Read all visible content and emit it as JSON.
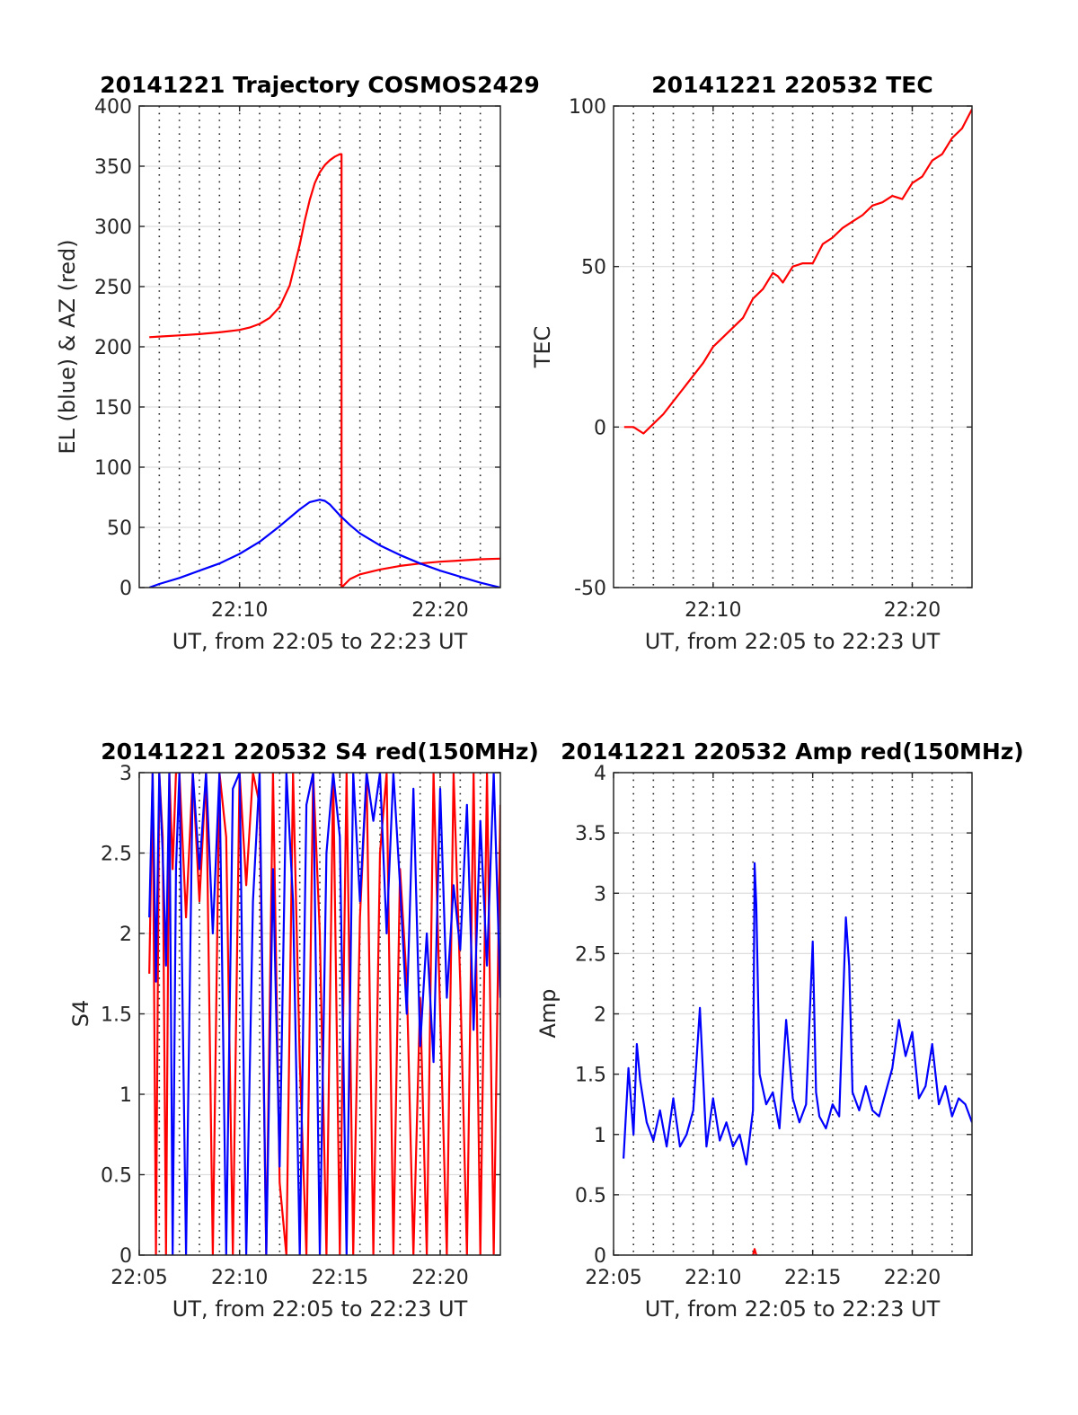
{
  "figure": {
    "colors": {
      "red": "#ff0000",
      "blue": "#0000ff",
      "axis": "#262626",
      "grid": "#dedede"
    }
  },
  "chart_data": [
    {
      "id": "trajectory",
      "type": "line",
      "title": "20141221 Trajectory COSMOS2429",
      "xlabel": "UT, from 22:05 to 22:23 UT",
      "ylabel": "EL (blue) & AZ (red)",
      "xlim": [
        "22:05",
        "22:23"
      ],
      "ylim": [
        0,
        400
      ],
      "yticks": [
        0,
        50,
        100,
        150,
        200,
        250,
        300,
        350,
        400
      ],
      "xticks": [
        {
          "t": "22:10",
          "label": "22:10"
        },
        {
          "t": "22:20",
          "label": "22:20"
        }
      ],
      "vgrid_minutes": [
        "22:06",
        "22:07",
        "22:08",
        "22:09",
        "22:10",
        "22:11",
        "22:12",
        "22:13",
        "22:14",
        "22:15",
        "22:16",
        "22:17",
        "22:18",
        "22:19",
        "22:20",
        "22:21",
        "22:22"
      ],
      "grid": true,
      "series": [
        {
          "color": "red",
          "x": [
            "22:05:30",
            "22:06:00",
            "22:07:00",
            "22:08:00",
            "22:09:00",
            "22:10:00",
            "22:10:30",
            "22:11:00",
            "22:11:30",
            "22:12:00",
            "22:12:30",
            "22:13:00",
            "22:13:15",
            "22:13:30",
            "22:13:45",
            "22:14:00",
            "22:14:15",
            "22:14:30",
            "22:14:45",
            "22:15:00",
            "22:15:05",
            "22:15:05",
            "22:15:30",
            "22:16:00",
            "22:17:00",
            "22:18:00",
            "22:19:00",
            "22:20:00",
            "22:21:00",
            "22:22:00",
            "22:23:00"
          ],
          "y": [
            208,
            208.5,
            209.5,
            210.5,
            212,
            214,
            216,
            219,
            224,
            233,
            251,
            285,
            305,
            322,
            336,
            345,
            351,
            355,
            358,
            360,
            360,
            0,
            7,
            11,
            15,
            18,
            20,
            21.5,
            22.5,
            23.5,
            24
          ]
        },
        {
          "color": "blue",
          "x": [
            "22:05:30",
            "22:06:00",
            "22:07:00",
            "22:08:00",
            "22:09:00",
            "22:10:00",
            "22:11:00",
            "22:12:00",
            "22:13:00",
            "22:13:30",
            "22:14:00",
            "22:14:15",
            "22:14:30",
            "22:15:00",
            "22:15:30",
            "22:16:00",
            "22:17:00",
            "22:18:00",
            "22:19:00",
            "22:20:00",
            "22:21:00",
            "22:22:00",
            "22:23:00"
          ],
          "y": [
            0,
            3,
            8,
            14,
            20,
            28,
            38,
            51,
            65,
            71,
            73,
            72,
            69,
            60,
            52,
            45,
            35,
            27,
            20,
            14,
            9,
            4,
            0
          ]
        }
      ]
    },
    {
      "id": "tec",
      "type": "line",
      "title": "20141221 220532 TEC",
      "xlabel": "UT, from 22:05 to 22:23 UT",
      "ylabel": "TEC",
      "xlim": [
        "22:05",
        "22:23"
      ],
      "ylim": [
        -50,
        100
      ],
      "yticks": [
        -50,
        0,
        50,
        100
      ],
      "xticks": [
        {
          "t": "22:10",
          "label": "22:10"
        },
        {
          "t": "22:20",
          "label": "22:20"
        }
      ],
      "vgrid_minutes": [
        "22:06",
        "22:07",
        "22:08",
        "22:09",
        "22:10",
        "22:11",
        "22:12",
        "22:13",
        "22:14",
        "22:15",
        "22:16",
        "22:17",
        "22:18",
        "22:19",
        "22:20",
        "22:21",
        "22:22"
      ],
      "grid": true,
      "series": [
        {
          "color": "red",
          "x": [
            "22:05:32",
            "22:06:00",
            "22:06:30",
            "22:07:00",
            "22:07:30",
            "22:08:00",
            "22:08:30",
            "22:09:00",
            "22:09:30",
            "22:10:00",
            "22:10:30",
            "22:11:00",
            "22:11:30",
            "22:12:00",
            "22:12:30",
            "22:13:00",
            "22:13:15",
            "22:13:30",
            "22:14:00",
            "22:14:30",
            "22:15:00",
            "22:15:30",
            "22:16:00",
            "22:16:30",
            "22:17:00",
            "22:17:30",
            "22:18:00",
            "22:18:30",
            "22:19:00",
            "22:19:30",
            "22:20:00",
            "22:20:30",
            "22:21:00",
            "22:21:30",
            "22:22:00",
            "22:22:30",
            "22:23:00"
          ],
          "y": [
            0,
            0,
            -2,
            1,
            4,
            8,
            12,
            16,
            20,
            25,
            28,
            31,
            34,
            40,
            43,
            48,
            47,
            45,
            50,
            51,
            51,
            57,
            59,
            62,
            64,
            66,
            69,
            70,
            72,
            71,
            76,
            78,
            83,
            85,
            90,
            93,
            99
          ]
        }
      ]
    },
    {
      "id": "s4",
      "type": "line",
      "title": "20141221 220532 S4 red(150MHz)",
      "xlabel": "UT, from 22:05 to 22:23 UT",
      "ylabel": "S4",
      "xlim": [
        "22:05",
        "22:23"
      ],
      "ylim": [
        0,
        3
      ],
      "yticks": [
        0,
        0.5,
        1,
        1.5,
        2,
        2.5,
        3
      ],
      "xticks": [
        {
          "t": "22:05",
          "label": "22:05"
        },
        {
          "t": "22:10",
          "label": "22:10"
        },
        {
          "t": "22:15",
          "label": "22:15"
        },
        {
          "t": "22:20",
          "label": "22:20"
        }
      ],
      "vgrid_minutes": [
        "22:06",
        "22:07",
        "22:08",
        "22:09",
        "22:10",
        "22:11",
        "22:12",
        "22:13",
        "22:14",
        "22:15",
        "22:16",
        "22:17",
        "22:18",
        "22:19",
        "22:20",
        "22:21",
        "22:22"
      ],
      "grid": true,
      "series": [
        {
          "color": "red",
          "x": [
            "22:05:30",
            "22:05:40",
            "22:05:50",
            "22:06:00",
            "22:06:10",
            "22:06:20",
            "22:06:30",
            "22:06:40",
            "22:06:50",
            "22:07:00",
            "22:07:20",
            "22:07:40",
            "22:08:00",
            "22:08:20",
            "22:08:40",
            "22:09:00",
            "22:09:20",
            "22:09:40",
            "22:10:00",
            "22:10:20",
            "22:10:40",
            "22:11:00",
            "22:11:20",
            "22:11:40",
            "22:12:00",
            "22:12:20",
            "22:12:40",
            "22:13:00",
            "22:13:20",
            "22:13:40",
            "22:14:00",
            "22:14:20",
            "22:14:40",
            "22:15:00",
            "22:15:20",
            "22:15:40",
            "22:16:00",
            "22:16:20",
            "22:16:40",
            "22:17:00",
            "22:17:20",
            "22:17:40",
            "22:18:00",
            "22:18:20",
            "22:18:40",
            "22:19:00",
            "22:19:20",
            "22:19:40",
            "22:20:00",
            "22:20:20",
            "22:20:40",
            "22:21:00",
            "22:21:20",
            "22:21:40",
            "22:22:00",
            "22:22:20",
            "22:22:40",
            "22:23:00"
          ],
          "y": [
            1.75,
            3,
            0,
            3,
            2.6,
            0,
            3,
            2.4,
            3,
            3,
            2.1,
            3,
            2.2,
            3,
            0,
            3,
            2.6,
            0,
            3,
            2.3,
            3,
            2.8,
            0,
            3,
            0.45,
            0,
            3,
            1.2,
            0,
            3,
            2.0,
            0,
            3,
            0,
            3,
            0,
            2.1,
            3,
            0,
            2.5,
            3,
            0,
            2.4,
            1.7,
            0,
            1.6,
            0,
            3,
            1.5,
            0,
            3,
            1.7,
            0,
            3,
            0,
            3,
            0,
            2.8
          ]
        },
        {
          "color": "blue",
          "x": [
            "22:05:30",
            "22:05:40",
            "22:05:50",
            "22:06:00",
            "22:06:10",
            "22:06:20",
            "22:06:30",
            "22:06:40",
            "22:06:50",
            "22:07:00",
            "22:07:20",
            "22:07:40",
            "22:08:00",
            "22:08:20",
            "22:08:40",
            "22:09:00",
            "22:09:20",
            "22:09:40",
            "22:10:00",
            "22:10:20",
            "22:10:40",
            "22:11:00",
            "22:11:20",
            "22:11:40",
            "22:12:00",
            "22:12:20",
            "22:12:40",
            "22:13:00",
            "22:13:20",
            "22:13:40",
            "22:14:00",
            "22:14:20",
            "22:14:40",
            "22:15:00",
            "22:15:20",
            "22:15:40",
            "22:16:00",
            "22:16:20",
            "22:16:40",
            "22:17:00",
            "22:17:20",
            "22:17:40",
            "22:18:00",
            "22:18:20",
            "22:18:40",
            "22:19:00",
            "22:19:20",
            "22:19:40",
            "22:20:00",
            "22:20:20",
            "22:20:40",
            "22:21:00",
            "22:21:20",
            "22:21:40",
            "22:22:00",
            "22:22:20",
            "22:22:40",
            "22:23:00"
          ],
          "y": [
            2.1,
            3,
            1.7,
            3,
            2.5,
            1.8,
            3,
            0,
            2.4,
            3,
            0,
            3,
            2.4,
            3,
            2.0,
            3,
            0,
            2.9,
            3,
            0,
            2.2,
            3,
            0,
            2.4,
            0.55,
            3,
            2.2,
            0,
            2.8,
            3,
            0,
            2.5,
            3,
            2.6,
            0,
            3,
            2.2,
            3,
            2.7,
            3,
            2.0,
            3,
            2.3,
            1.5,
            2.9,
            1.3,
            2.0,
            1.2,
            2.9,
            1.6,
            2.3,
            1.9,
            2.8,
            1.4,
            2.7,
            1.8,
            3,
            1.6
          ]
        }
      ]
    },
    {
      "id": "amp",
      "type": "line",
      "title": "20141221 220532 Amp red(150MHz)",
      "xlabel": "UT, from 22:05 to 22:23 UT",
      "ylabel": "Amp",
      "xlim": [
        "22:05",
        "22:23"
      ],
      "ylim": [
        0,
        4
      ],
      "yticks": [
        0,
        0.5,
        1,
        1.5,
        2,
        2.5,
        3,
        3.5,
        4
      ],
      "xticks": [
        {
          "t": "22:05",
          "label": "22:05"
        },
        {
          "t": "22:10",
          "label": "22:10"
        },
        {
          "t": "22:15",
          "label": "22:15"
        },
        {
          "t": "22:20",
          "label": "22:20"
        }
      ],
      "vgrid_minutes": [
        "22:06",
        "22:07",
        "22:08",
        "22:09",
        "22:10",
        "22:11",
        "22:12",
        "22:13",
        "22:14",
        "22:15",
        "22:16",
        "22:17",
        "22:18",
        "22:19",
        "22:20",
        "22:21",
        "22:22"
      ],
      "grid": true,
      "series": [
        {
          "color": "blue",
          "x": [
            "22:05:30",
            "22:05:45",
            "22:06:00",
            "22:06:10",
            "22:06:20",
            "22:06:40",
            "22:07:00",
            "22:07:20",
            "22:07:40",
            "22:08:00",
            "22:08:20",
            "22:08:40",
            "22:09:00",
            "22:09:20",
            "22:09:40",
            "22:10:00",
            "22:10:20",
            "22:10:40",
            "22:11:00",
            "22:11:20",
            "22:11:40",
            "22:12:00",
            "22:12:05",
            "22:12:10",
            "22:12:20",
            "22:12:40",
            "22:13:00",
            "22:13:20",
            "22:13:40",
            "22:14:00",
            "22:14:20",
            "22:14:40",
            "22:15:00",
            "22:15:10",
            "22:15:20",
            "22:15:40",
            "22:16:00",
            "22:16:20",
            "22:16:40",
            "22:16:50",
            "22:17:00",
            "22:17:20",
            "22:17:40",
            "22:18:00",
            "22:18:20",
            "22:18:40",
            "22:19:00",
            "22:19:20",
            "22:19:40",
            "22:20:00",
            "22:20:20",
            "22:20:40",
            "22:21:00",
            "22:21:20",
            "22:21:40",
            "22:22:00",
            "22:22:20",
            "22:22:40",
            "22:23:00"
          ],
          "y": [
            0.8,
            1.55,
            1.0,
            1.75,
            1.45,
            1.1,
            0.95,
            1.2,
            0.9,
            1.3,
            0.9,
            1.0,
            1.2,
            2.05,
            0.9,
            1.3,
            0.95,
            1.1,
            0.9,
            1.0,
            0.75,
            1.2,
            3.25,
            2.9,
            1.5,
            1.25,
            1.35,
            1.05,
            1.95,
            1.3,
            1.1,
            1.25,
            2.6,
            1.35,
            1.15,
            1.05,
            1.25,
            1.15,
            2.8,
            2.4,
            1.35,
            1.2,
            1.4,
            1.2,
            1.15,
            1.35,
            1.55,
            1.95,
            1.65,
            1.85,
            1.3,
            1.4,
            1.75,
            1.25,
            1.4,
            1.15,
            1.3,
            1.25,
            1.1
          ]
        },
        {
          "color": "red",
          "x": [
            "22:12:00",
            "22:12:05",
            "22:12:10"
          ],
          "y": [
            0,
            0.05,
            0
          ]
        }
      ]
    }
  ]
}
